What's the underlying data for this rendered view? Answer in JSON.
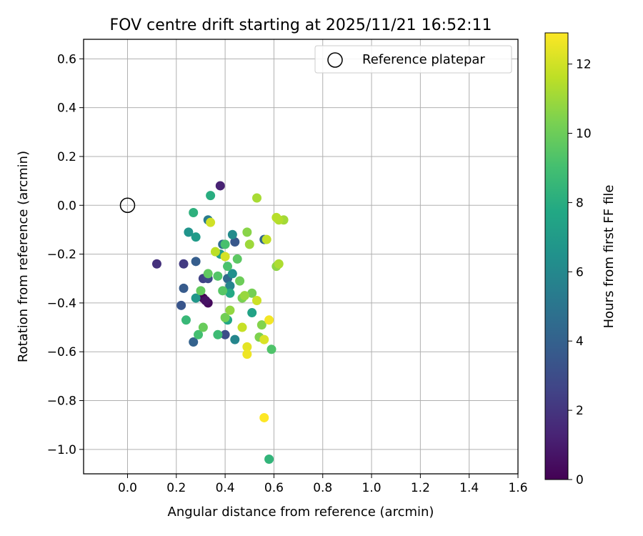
{
  "chart_data": {
    "type": "scatter",
    "title": "FOV centre drift starting at 2025/11/21 16:52:11",
    "xlabel": "Angular distance from reference (arcmin)",
    "ylabel": "Rotation from reference (arcmin)",
    "xlim": [
      -0.18,
      1.6
    ],
    "ylim": [
      -1.1,
      0.68
    ],
    "xticks": [
      0.0,
      0.2,
      0.4,
      0.6,
      0.8,
      1.0,
      1.2,
      1.4,
      1.6
    ],
    "xtick_labels": [
      "0.0",
      "0.2",
      "0.4",
      "0.6",
      "0.8",
      "1.0",
      "1.2",
      "1.4",
      "1.6"
    ],
    "yticks": [
      0.6,
      0.4,
      0.2,
      0.0,
      -0.2,
      -0.4,
      -0.6,
      -0.8,
      -1.0
    ],
    "ytick_labels": [
      "0.6",
      "0.4",
      "0.2",
      "0.0",
      "−0.2",
      "−0.4",
      "−0.6",
      "−0.8",
      "−1.0"
    ],
    "grid": true,
    "legend": {
      "position": "top-right",
      "entries": [
        "Reference platepar"
      ]
    },
    "reference_point": {
      "x": 0.0,
      "y": 0.0,
      "label": "Reference platepar"
    },
    "colorbar": {
      "label": "Hours from first FF file",
      "range": [
        0,
        12.9
      ],
      "ticks": [
        0,
        2,
        4,
        6,
        8,
        10,
        12
      ],
      "tick_labels": [
        "0",
        "2",
        "4",
        "6",
        "8",
        "10",
        "12"
      ],
      "colormap": "viridis"
    },
    "points": [
      {
        "x": 0.31,
        "y": -0.38,
        "hours": 0.0
      },
      {
        "x": 0.33,
        "y": -0.4,
        "hours": 0.3
      },
      {
        "x": 0.32,
        "y": -0.39,
        "hours": 0.6
      },
      {
        "x": 0.38,
        "y": 0.08,
        "hours": 1.2
      },
      {
        "x": 0.12,
        "y": -0.24,
        "hours": 1.8
      },
      {
        "x": 0.23,
        "y": -0.24,
        "hours": 2.2
      },
      {
        "x": 0.31,
        "y": -0.3,
        "hours": 2.5
      },
      {
        "x": 0.33,
        "y": -0.3,
        "hours": 2.8
      },
      {
        "x": 0.4,
        "y": -0.53,
        "hours": 3.0
      },
      {
        "x": 0.22,
        "y": -0.41,
        "hours": 3.4
      },
      {
        "x": 0.44,
        "y": -0.15,
        "hours": 3.5
      },
      {
        "x": 0.23,
        "y": -0.34,
        "hours": 3.7
      },
      {
        "x": 0.28,
        "y": -0.23,
        "hours": 3.8
      },
      {
        "x": 0.27,
        "y": -0.56,
        "hours": 4.0
      },
      {
        "x": 0.56,
        "y": -0.14,
        "hours": 4.2
      },
      {
        "x": 0.41,
        "y": -0.3,
        "hours": 4.4
      },
      {
        "x": 0.39,
        "y": -0.16,
        "hours": 4.6
      },
      {
        "x": 0.33,
        "y": -0.06,
        "hours": 5.3
      },
      {
        "x": 0.42,
        "y": -0.33,
        "hours": 5.8
      },
      {
        "x": 0.44,
        "y": -0.55,
        "hours": 5.9
      },
      {
        "x": 0.43,
        "y": -0.12,
        "hours": 6.2
      },
      {
        "x": 0.43,
        "y": -0.28,
        "hours": 6.4
      },
      {
        "x": 0.25,
        "y": -0.11,
        "hours": 6.6
      },
      {
        "x": 0.28,
        "y": -0.38,
        "hours": 6.8
      },
      {
        "x": 0.28,
        "y": -0.13,
        "hours": 7.0
      },
      {
        "x": 0.38,
        "y": -0.2,
        "hours": 7.2
      },
      {
        "x": 0.51,
        "y": -0.44,
        "hours": 7.4
      },
      {
        "x": 0.41,
        "y": -0.47,
        "hours": 7.6
      },
      {
        "x": 0.42,
        "y": -0.36,
        "hours": 7.8
      },
      {
        "x": 0.34,
        "y": 0.04,
        "hours": 8.0
      },
      {
        "x": 0.27,
        "y": -0.03,
        "hours": 8.2
      },
      {
        "x": 0.58,
        "y": -1.04,
        "hours": 8.4
      },
      {
        "x": 0.24,
        "y": -0.47,
        "hours": 8.6
      },
      {
        "x": 0.37,
        "y": -0.53,
        "hours": 8.8
      },
      {
        "x": 0.29,
        "y": -0.53,
        "hours": 9.0
      },
      {
        "x": 0.4,
        "y": -0.16,
        "hours": 9.1
      },
      {
        "x": 0.41,
        "y": -0.25,
        "hours": 9.2
      },
      {
        "x": 0.59,
        "y": -0.59,
        "hours": 9.3
      },
      {
        "x": 0.37,
        "y": -0.29,
        "hours": 9.4
      },
      {
        "x": 0.39,
        "y": -0.35,
        "hours": 9.5
      },
      {
        "x": 0.45,
        "y": -0.22,
        "hours": 9.6
      },
      {
        "x": 0.33,
        "y": -0.28,
        "hours": 9.7
      },
      {
        "x": 0.3,
        "y": -0.35,
        "hours": 9.8
      },
      {
        "x": 0.31,
        "y": -0.5,
        "hours": 9.9
      },
      {
        "x": 0.46,
        "y": -0.31,
        "hours": 10.0
      },
      {
        "x": 0.4,
        "y": -0.46,
        "hours": 10.1
      },
      {
        "x": 0.51,
        "y": -0.36,
        "hours": 10.2
      },
      {
        "x": 0.47,
        "y": -0.38,
        "hours": 10.3
      },
      {
        "x": 0.54,
        "y": -0.54,
        "hours": 10.4
      },
      {
        "x": 0.55,
        "y": -0.49,
        "hours": 10.5
      },
      {
        "x": 0.49,
        "y": -0.11,
        "hours": 10.6
      },
      {
        "x": 0.61,
        "y": -0.25,
        "hours": 10.7
      },
      {
        "x": 0.42,
        "y": -0.43,
        "hours": 10.8
      },
      {
        "x": 0.48,
        "y": -0.37,
        "hours": 10.9
      },
      {
        "x": 0.5,
        "y": -0.16,
        "hours": 11.0
      },
      {
        "x": 0.64,
        "y": -0.06,
        "hours": 11.1
      },
      {
        "x": 0.53,
        "y": 0.03,
        "hours": 11.2
      },
      {
        "x": 0.62,
        "y": -0.24,
        "hours": 11.3
      },
      {
        "x": 0.62,
        "y": -0.06,
        "hours": 11.4
      },
      {
        "x": 0.61,
        "y": -0.05,
        "hours": 11.5
      },
      {
        "x": 0.36,
        "y": -0.19,
        "hours": 11.6
      },
      {
        "x": 0.57,
        "y": -0.14,
        "hours": 11.7
      },
      {
        "x": 0.47,
        "y": -0.5,
        "hours": 11.8
      },
      {
        "x": 0.53,
        "y": -0.39,
        "hours": 11.9
      },
      {
        "x": 0.34,
        "y": -0.07,
        "hours": 12.0
      },
      {
        "x": 0.4,
        "y": -0.21,
        "hours": 12.1
      },
      {
        "x": 0.56,
        "y": -0.55,
        "hours": 12.2
      },
      {
        "x": 0.49,
        "y": -0.58,
        "hours": 12.4
      },
      {
        "x": 0.49,
        "y": -0.61,
        "hours": 12.6
      },
      {
        "x": 0.58,
        "y": -0.47,
        "hours": 12.7
      },
      {
        "x": 0.56,
        "y": -0.87,
        "hours": 12.9
      }
    ]
  }
}
